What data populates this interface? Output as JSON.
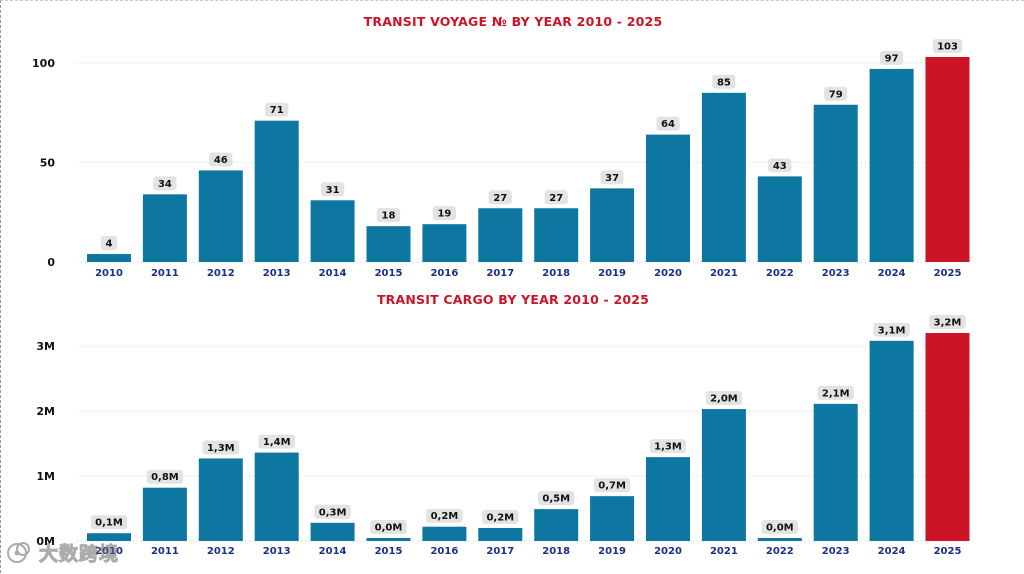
{
  "colors": {
    "bar": "#0e77a1",
    "highlight_bar": "#cc1426",
    "title": "#cc1426",
    "xtick": "#1b2f8c"
  },
  "watermark": {
    "text": "大数跨境",
    "icon": "logo-icon"
  },
  "chart_data": [
    {
      "type": "bar",
      "title": "TRANSIT VOYAGE № BY YEAR 2010 - 2025",
      "xlabel": "",
      "ylabel": "",
      "ylim": [
        0,
        105
      ],
      "yticks": [
        0,
        50,
        100
      ],
      "ytick_labels": [
        "0",
        "50",
        "100"
      ],
      "grid": true,
      "highlight_category": "2025",
      "categories": [
        "2010",
        "2011",
        "2012",
        "2013",
        "2014",
        "2015",
        "2016",
        "2017",
        "2018",
        "2019",
        "2020",
        "2021",
        "2022",
        "2023",
        "2024",
        "2025"
      ],
      "values": [
        4,
        34,
        46,
        71,
        31,
        18,
        19,
        27,
        27,
        37,
        64,
        85,
        43,
        79,
        97,
        103
      ],
      "data_labels": [
        "4",
        "34",
        "46",
        "71",
        "31",
        "18",
        "19",
        "27",
        "27",
        "37",
        "64",
        "85",
        "43",
        "79",
        "97",
        "103"
      ]
    },
    {
      "type": "bar",
      "title": "TRANSIT CARGO BY YEAR 2010 - 2025",
      "xlabel": "",
      "ylabel": "",
      "ylim": [
        0,
        3.2
      ],
      "yticks": [
        0,
        1,
        2,
        3
      ],
      "ytick_labels": [
        "0M",
        "1M",
        "2M",
        "3M"
      ],
      "grid": true,
      "highlight_category": "2025",
      "categories": [
        "2010",
        "2011",
        "2012",
        "2013",
        "2014",
        "2015",
        "2016",
        "2017",
        "2018",
        "2019",
        "2020",
        "2021",
        "2022",
        "2023",
        "2024",
        "2025"
      ],
      "values": [
        0.12,
        0.82,
        1.27,
        1.36,
        0.28,
        0.04,
        0.22,
        0.2,
        0.49,
        0.69,
        1.29,
        2.03,
        0.04,
        2.11,
        3.08,
        3.2
      ],
      "data_labels": [
        "0,1M",
        "0,8M",
        "1,3M",
        "1,4M",
        "0,3M",
        "0,0M",
        "0,2M",
        "0,2M",
        "0,5M",
        "0,7M",
        "1,3M",
        "2,0M",
        "0,0M",
        "2,1M",
        "3,1M",
        "3,2M"
      ]
    }
  ]
}
